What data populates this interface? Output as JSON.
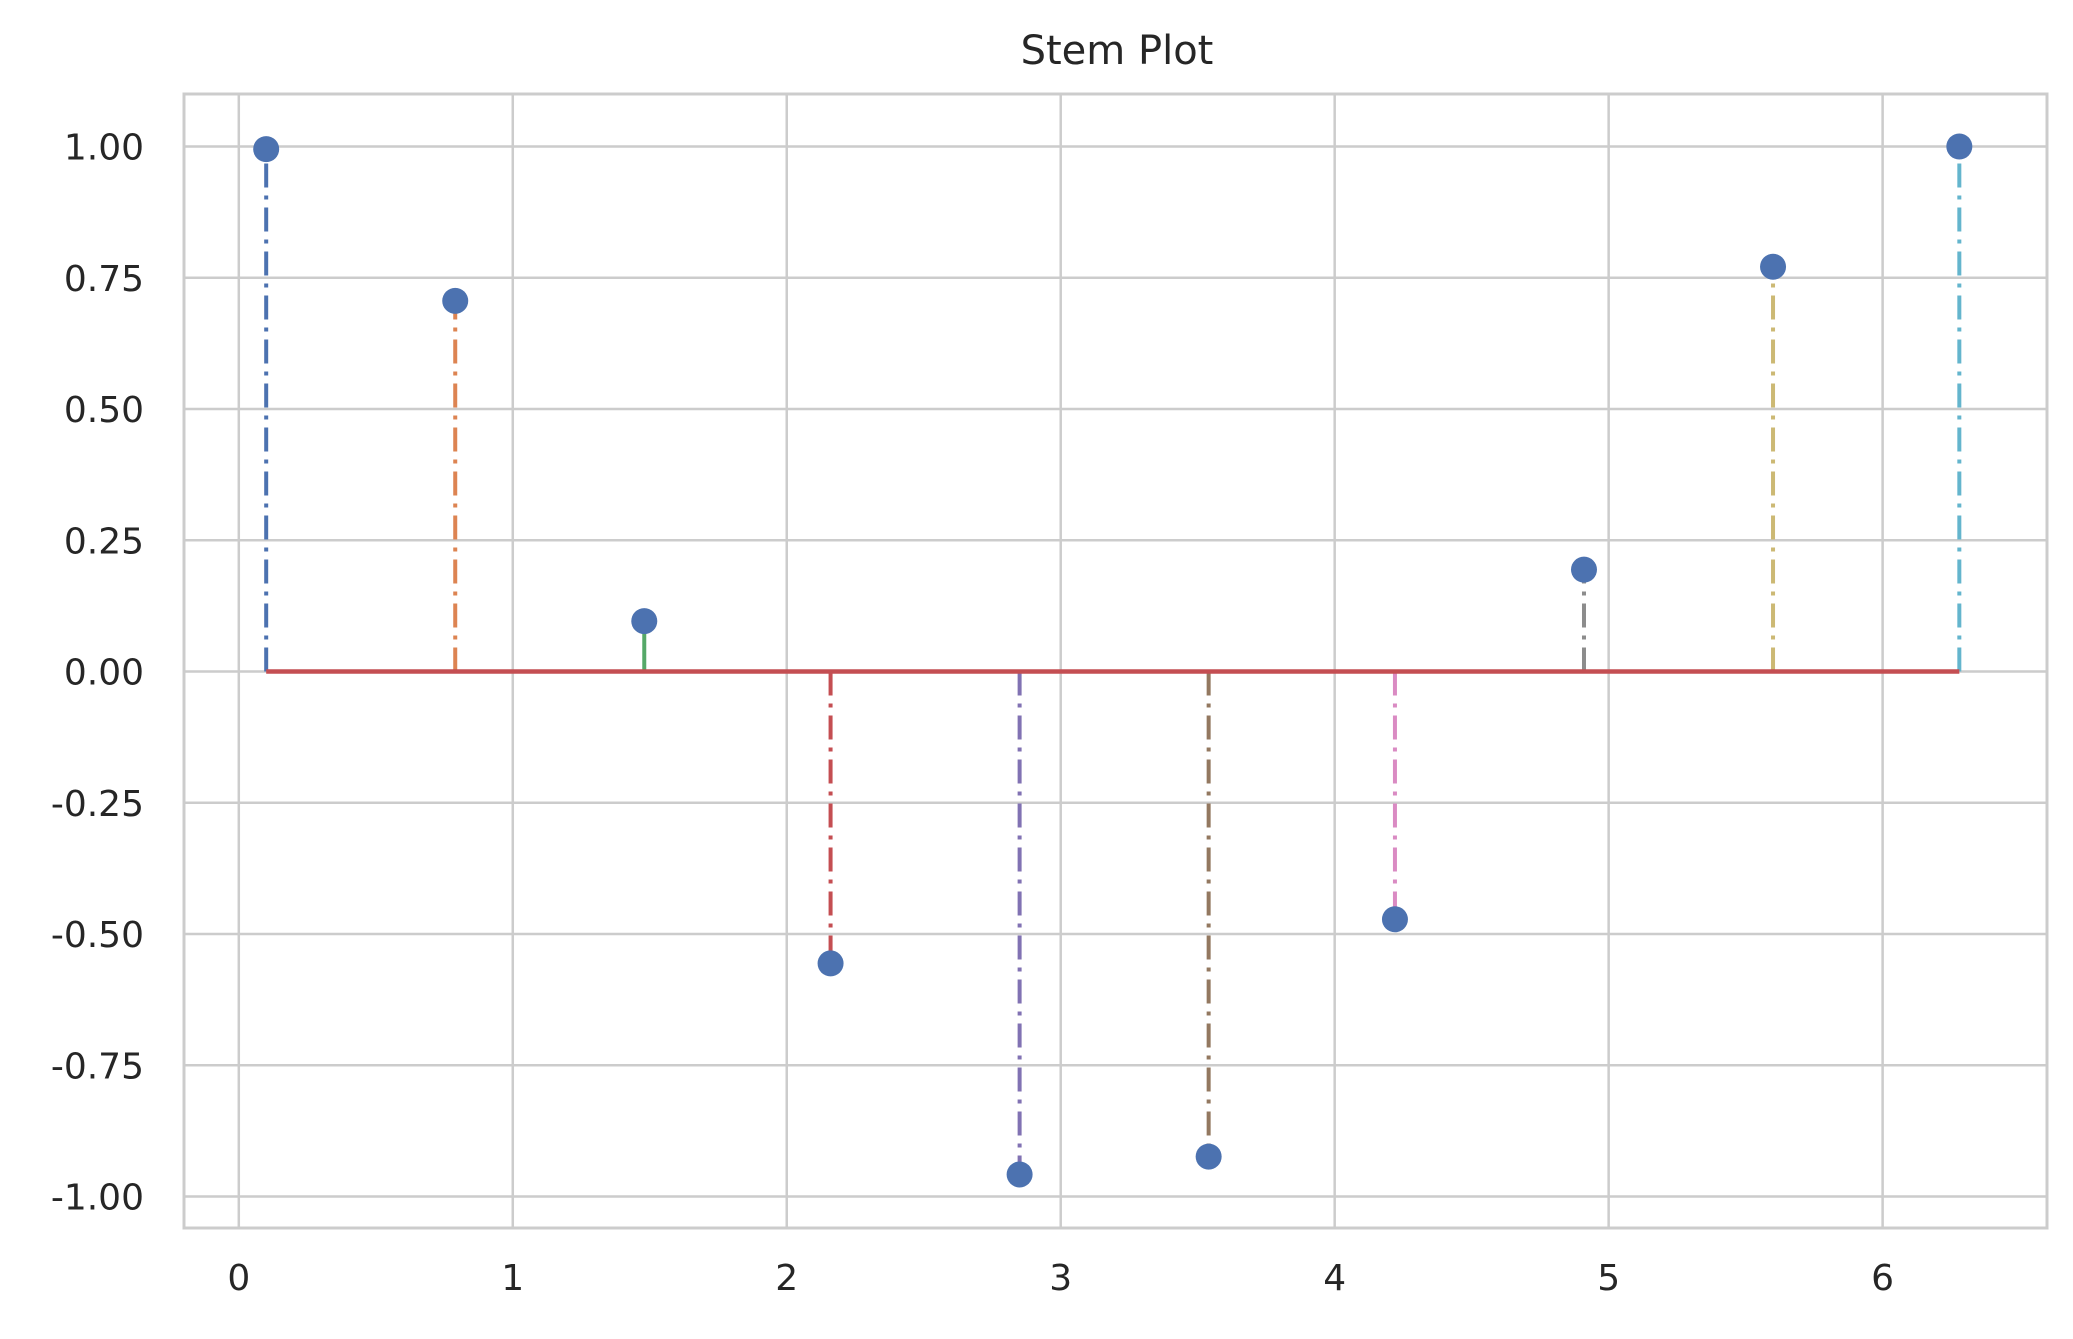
{
  "chart_data": {
    "type": "stem",
    "title": "Stem Plot",
    "xlabel": "",
    "ylabel": "",
    "xlim": [
      -0.2,
      6.6
    ],
    "ylim": [
      -1.06,
      1.1
    ],
    "grid": true,
    "xticks": [
      0,
      1,
      2,
      3,
      4,
      5,
      6
    ],
    "xtick_labels": [
      "0",
      "1",
      "2",
      "3",
      "4",
      "5",
      "6"
    ],
    "yticks": [
      1.0,
      0.75,
      0.5,
      0.25,
      0.0,
      -0.25,
      -0.5,
      -0.75,
      -1.0
    ],
    "ytick_labels": [
      "1.00",
      "0.75",
      "0.50",
      "0.25",
      "0.00",
      "-0.25",
      "-0.50",
      "-0.75",
      "-1.00"
    ],
    "baseline": 0,
    "baseline_color": "#c44e52",
    "marker_color": "#4c72b0",
    "points": [
      {
        "x": 0.1,
        "y": 0.995,
        "stem_color": "#4c72b0",
        "stem_style": "dashdot"
      },
      {
        "x": 0.79,
        "y": 0.706,
        "stem_color": "#dd8452",
        "stem_style": "dashdot"
      },
      {
        "x": 1.48,
        "y": 0.096,
        "stem_color": "#55a868",
        "stem_style": "solid"
      },
      {
        "x": 2.16,
        "y": -0.556,
        "stem_color": "#c44e52",
        "stem_style": "dashdot"
      },
      {
        "x": 2.85,
        "y": -0.958,
        "stem_color": "#8172b3",
        "stem_style": "dashdot"
      },
      {
        "x": 3.54,
        "y": -0.924,
        "stem_color": "#937860",
        "stem_style": "dashdot"
      },
      {
        "x": 4.22,
        "y": -0.472,
        "stem_color": "#da8bc3",
        "stem_style": "dashdot"
      },
      {
        "x": 4.91,
        "y": 0.194,
        "stem_color": "#8c8c8c",
        "stem_style": "dashdot"
      },
      {
        "x": 5.6,
        "y": 0.771,
        "stem_color": "#ccb974",
        "stem_style": "dashdot"
      },
      {
        "x": 6.28,
        "y": 1.0,
        "stem_color": "#64b5cd",
        "stem_style": "dashdot"
      }
    ]
  }
}
